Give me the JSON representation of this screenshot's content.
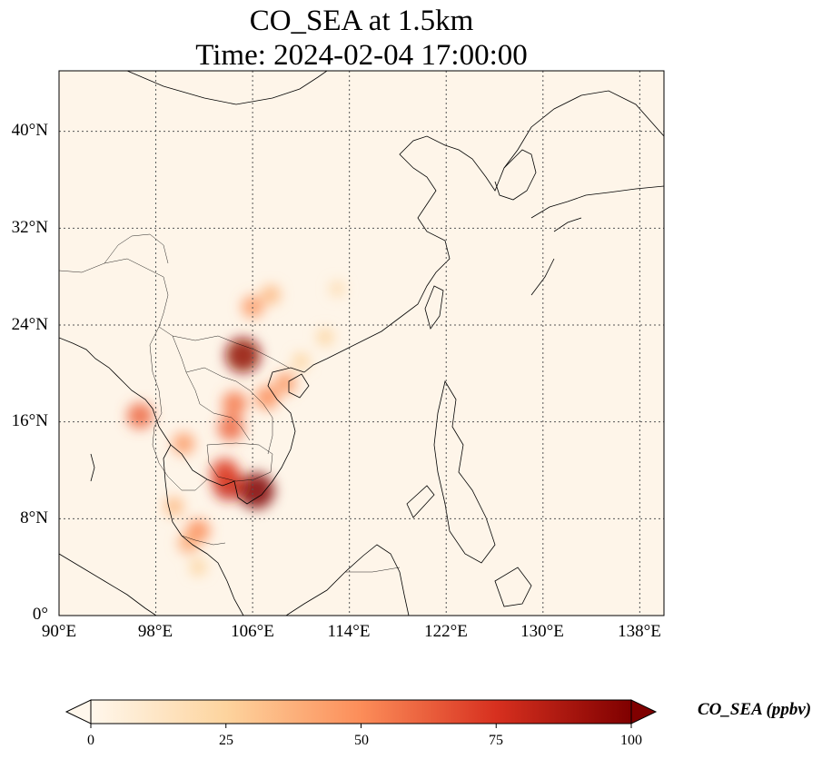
{
  "title": {
    "line1": "CO_SEA at 1.5km",
    "line2": "Time: 2024-02-04 17:00:00"
  },
  "map": {
    "projection": "PlateCarree",
    "lon_range": [
      90,
      140
    ],
    "lat_range": [
      0,
      45
    ],
    "gridlines": "dotted",
    "lat_ticks": [
      "0°",
      "8°N",
      "16°N",
      "24°N",
      "32°N",
      "40°N"
    ],
    "lon_ticks": [
      "90°E",
      "98°E",
      "106°E",
      "114°E",
      "122°E",
      "130°E",
      "138°E"
    ],
    "lat_tick_values": [
      0,
      8,
      16,
      24,
      32,
      40
    ],
    "lon_tick_values": [
      90,
      98,
      106,
      114,
      122,
      130,
      138
    ]
  },
  "chart_data": {
    "type": "heatmap",
    "variable": "CO_SEA",
    "units": "ppbv",
    "colormap": "OrRd",
    "hotspots": [
      {
        "lon": 105.2,
        "lat": 21.5,
        "value": 95
      },
      {
        "lon": 106.3,
        "lat": 10.3,
        "value": 100
      },
      {
        "lon": 104.0,
        "lat": 10.8,
        "value": 80
      },
      {
        "lon": 103.7,
        "lat": 11.8,
        "value": 70
      },
      {
        "lon": 104.2,
        "lat": 15.5,
        "value": 60
      },
      {
        "lon": 104.5,
        "lat": 17.5,
        "value": 55
      },
      {
        "lon": 107.2,
        "lat": 18.0,
        "value": 50
      },
      {
        "lon": 108.7,
        "lat": 19.2,
        "value": 45
      },
      {
        "lon": 106.0,
        "lat": 25.5,
        "value": 45
      },
      {
        "lon": 107.5,
        "lat": 26.5,
        "value": 35
      },
      {
        "lon": 100.3,
        "lat": 14.2,
        "value": 45
      },
      {
        "lon": 101.5,
        "lat": 7.0,
        "value": 50
      },
      {
        "lon": 100.7,
        "lat": 6.0,
        "value": 40
      },
      {
        "lon": 96.7,
        "lat": 16.5,
        "value": 60
      },
      {
        "lon": 99.5,
        "lat": 9.0,
        "value": 35
      },
      {
        "lon": 101.5,
        "lat": 4.0,
        "value": 25
      },
      {
        "lon": 112.0,
        "lat": 23.0,
        "value": 25
      },
      {
        "lon": 113.0,
        "lat": 27.0,
        "value": 20
      },
      {
        "lon": 110.0,
        "lat": 21.0,
        "value": 25
      }
    ]
  },
  "colorbar": {
    "label": "CO_SEA (ppbv)",
    "ticks": [
      "0",
      "25",
      "50",
      "75",
      "100"
    ],
    "tick_values": [
      0,
      25,
      50,
      75,
      100
    ],
    "range": [
      0,
      100
    ],
    "extend": "both"
  }
}
